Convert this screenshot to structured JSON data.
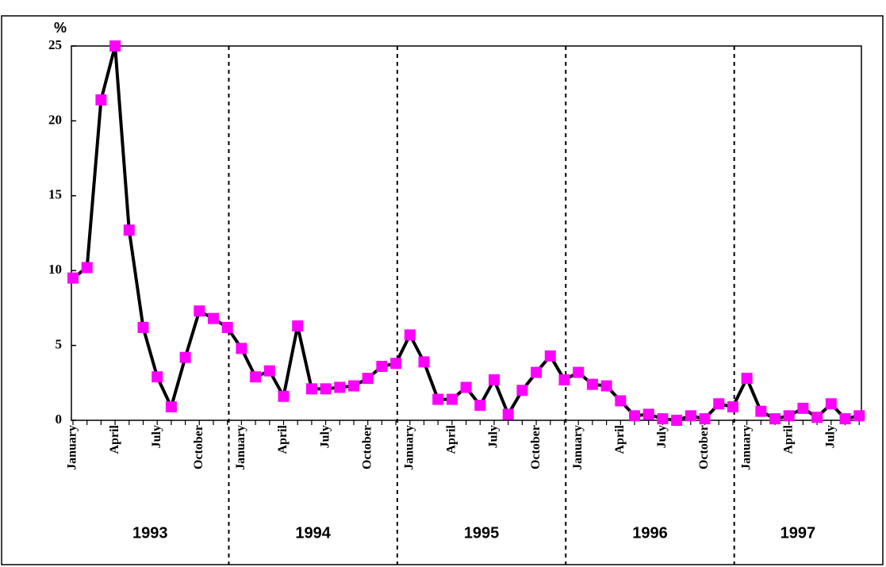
{
  "chart_data": {
    "type": "line",
    "y_label": "%",
    "categories": [
      "January",
      null,
      null,
      "April",
      null,
      null,
      "July",
      null,
      null,
      "October",
      null,
      null,
      "January",
      null,
      null,
      "April",
      null,
      null,
      "July",
      null,
      null,
      "October",
      null,
      null,
      "January",
      null,
      null,
      "April",
      null,
      null,
      "July",
      null,
      null,
      "October",
      null,
      null,
      "January",
      null,
      null,
      "April",
      null,
      null,
      "July",
      null,
      null,
      "October",
      null,
      null,
      "January",
      null,
      null,
      "April",
      null,
      null,
      "July",
      null,
      null
    ],
    "year_labels": [
      "1993",
      "1994",
      "1995",
      "1996",
      "1997"
    ],
    "series": [
      {
        "color": "#ff00ff",
        "line_color": "#000000",
        "values": [
          9.5,
          10.2,
          21.4,
          25,
          12.7,
          6.2,
          2.9,
          0.9,
          4.2,
          7.3,
          6.8,
          6.2,
          4.8,
          2.9,
          3.3,
          1.6,
          6.3,
          2.1,
          2.1,
          2.2,
          2.3,
          2.8,
          3.6,
          3.8,
          5.7,
          3.9,
          1.4,
          1.4,
          2.2,
          1.0,
          2.7,
          0.4,
          2.0,
          3.2,
          4.3,
          2.7,
          3.2,
          2.4,
          2.3,
          1.3,
          0.3,
          0.4,
          0.1,
          0.0,
          0.3,
          0.1,
          1.1,
          0.9,
          2.8,
          0.6,
          0.1,
          0.3,
          0.8,
          0.2,
          1.1,
          0.1,
          0.3
        ]
      }
    ],
    "ylim": [
      0,
      25
    ],
    "yticks": [
      0,
      5,
      10,
      15,
      20,
      25
    ]
  }
}
